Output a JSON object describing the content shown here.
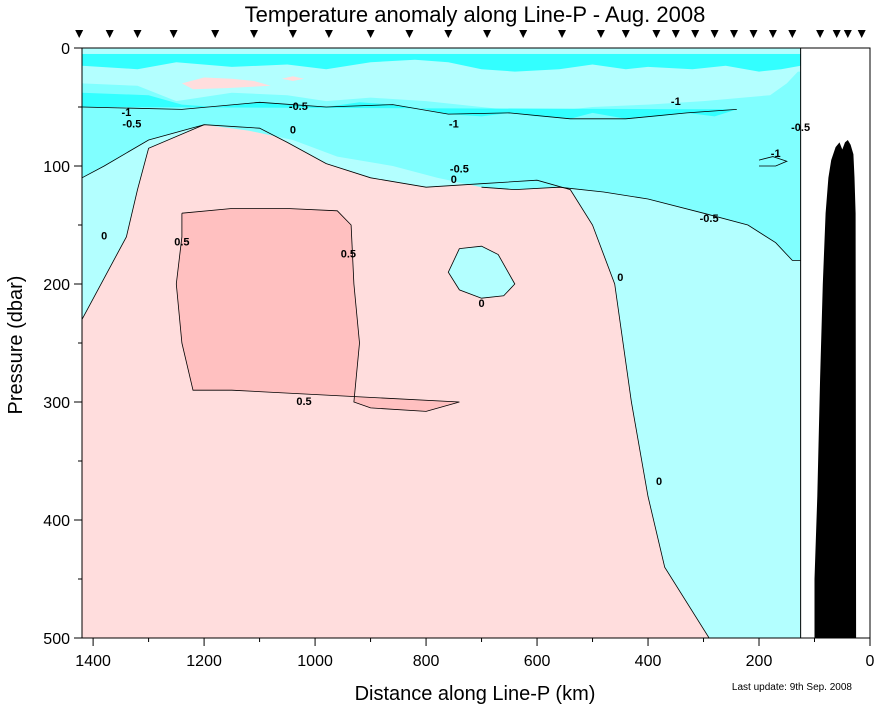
{
  "chart_data": {
    "type": "heatmap",
    "title": "Temperature anomaly along Line-P - Aug. 2008",
    "xlabel": "Distance along Line-P (km)",
    "ylabel": "Pressure (dbar)",
    "xlim": [
      1420,
      0
    ],
    "ylim": [
      0,
      500
    ],
    "x_ticks": [
      1400,
      1200,
      1000,
      800,
      600,
      400,
      200,
      0
    ],
    "x_minor_step": 100,
    "y_ticks": [
      0,
      100,
      200,
      300,
      400,
      500
    ],
    "y_minor_step": 50,
    "x_tick_labels": [
      "1400",
      "1200",
      "1000",
      "800",
      "600",
      "400",
      "200",
      "0"
    ],
    "y_tick_labels": [
      "0",
      "100",
      "200",
      "300",
      "400",
      "500"
    ],
    "data_extent_km": 125,
    "station_positions_km": [
      1425,
      1370,
      1320,
      1255,
      1180,
      1110,
      1040,
      975,
      900,
      830,
      760,
      690,
      625,
      555,
      485,
      440,
      385,
      350,
      315,
      280,
      245,
      210,
      175,
      140,
      90,
      60,
      40,
      15
    ],
    "contour_levels": [
      -1,
      -0.5,
      0,
      0.5
    ],
    "colors": {
      "below_-1": "#33ffff",
      "-1_to_-0.5": "#80ffff",
      "-0.5_to_0": "#b3ffff",
      "0_to_0.5": "#ffdddd",
      "above_0.5": "#ffc0c0",
      "bathymetry": "#000000"
    },
    "regions": [
      {
        "level": "0_to_0.5",
        "points": [
          [
            1420,
            230
          ],
          [
            1340,
            160
          ],
          [
            1320,
            120
          ],
          [
            1300,
            85
          ],
          [
            1200,
            65
          ],
          [
            1100,
            68
          ],
          [
            1050,
            80
          ],
          [
            980,
            98
          ],
          [
            900,
            110
          ],
          [
            800,
            118
          ],
          [
            700,
            115
          ],
          [
            600,
            112
          ],
          [
            540,
            120
          ],
          [
            500,
            150
          ],
          [
            460,
            200
          ],
          [
            430,
            300
          ],
          [
            400,
            380
          ],
          [
            370,
            440
          ],
          [
            290,
            500
          ],
          [
            1420,
            500
          ]
        ]
      },
      {
        "level": "-0.5_to_0",
        "points": [
          [
            740,
            170
          ],
          [
            700,
            168
          ],
          [
            670,
            175
          ],
          [
            640,
            200
          ],
          [
            660,
            210
          ],
          [
            700,
            212
          ],
          [
            740,
            205
          ],
          [
            760,
            190
          ]
        ]
      },
      {
        "level": "above_0.5",
        "points": [
          [
            1240,
            140
          ],
          [
            1150,
            136
          ],
          [
            1050,
            136
          ],
          [
            960,
            138
          ],
          [
            935,
            150
          ],
          [
            930,
            200
          ],
          [
            920,
            250
          ],
          [
            930,
            300
          ],
          [
            900,
            305
          ],
          [
            800,
            308
          ],
          [
            740,
            300
          ],
          [
            1150,
            290
          ],
          [
            1220,
            290
          ],
          [
            1240,
            250
          ],
          [
            1250,
            200
          ],
          [
            1240,
            160
          ]
        ]
      },
      {
        "level": "-1_to_-0.5",
        "points": [
          [
            1420,
            30
          ],
          [
            1320,
            32
          ],
          [
            1250,
            45
          ],
          [
            1150,
            38
          ],
          [
            1050,
            40
          ],
          [
            980,
            45
          ],
          [
            900,
            42
          ],
          [
            800,
            45
          ],
          [
            700,
            50
          ],
          [
            600,
            55
          ],
          [
            500,
            50
          ],
          [
            400,
            48
          ],
          [
            300,
            45
          ],
          [
            180,
            40
          ],
          [
            150,
            30
          ],
          [
            130,
            20
          ],
          [
            125,
            20
          ],
          [
            125,
            180
          ],
          [
            140,
            180
          ],
          [
            170,
            165
          ],
          [
            220,
            150
          ],
          [
            300,
            140
          ],
          [
            400,
            128
          ],
          [
            480,
            122
          ],
          [
            560,
            118
          ],
          [
            640,
            120
          ],
          [
            700,
            118
          ],
          [
            780,
            110
          ],
          [
            860,
            100
          ],
          [
            960,
            92
          ],
          [
            1040,
            78
          ],
          [
            1120,
            70
          ],
          [
            1200,
            65
          ],
          [
            1300,
            78
          ],
          [
            1380,
            100
          ],
          [
            1420,
            110
          ]
        ]
      },
      {
        "level": "below_-1",
        "points": [
          [
            1420,
            15
          ],
          [
            1320,
            18
          ],
          [
            1250,
            12
          ],
          [
            1150,
            16
          ],
          [
            1050,
            14
          ],
          [
            980,
            18
          ],
          [
            900,
            12
          ],
          [
            820,
            10
          ],
          [
            760,
            12
          ],
          [
            700,
            18
          ],
          [
            640,
            20
          ],
          [
            560,
            18
          ],
          [
            500,
            14
          ],
          [
            440,
            18
          ],
          [
            400,
            16
          ],
          [
            320,
            18
          ],
          [
            260,
            15
          ],
          [
            200,
            20
          ],
          [
            160,
            18
          ],
          [
            125,
            15
          ],
          [
            125,
            5
          ],
          [
            1420,
            5
          ]
        ]
      },
      {
        "level": "below_-1",
        "points": [
          [
            1420,
            38
          ],
          [
            1300,
            40
          ],
          [
            1240,
            48
          ],
          [
            1180,
            50
          ],
          [
            1100,
            46
          ],
          [
            1040,
            48
          ],
          [
            980,
            50
          ],
          [
            920,
            46
          ],
          [
            860,
            48
          ],
          [
            800,
            52
          ],
          [
            760,
            56
          ],
          [
            700,
            58
          ],
          [
            650,
            55
          ],
          [
            600,
            58
          ],
          [
            540,
            60
          ],
          [
            500,
            55
          ],
          [
            440,
            60
          ],
          [
            380,
            58
          ],
          [
            330,
            55
          ],
          [
            280,
            58
          ],
          [
            240,
            52
          ],
          [
            1420,
            50
          ]
        ]
      },
      {
        "level": "-0.5_to_0",
        "points": [
          [
            1420,
            5
          ],
          [
            125,
            5
          ],
          [
            125,
            0
          ],
          [
            1420,
            0
          ]
        ]
      },
      {
        "level": "0_to_0.5",
        "points": [
          [
            1240,
            30
          ],
          [
            1200,
            25
          ],
          [
            1150,
            26
          ],
          [
            1110,
            28
          ],
          [
            1080,
            32
          ],
          [
            1160,
            34
          ],
          [
            1220,
            35
          ]
        ]
      },
      {
        "level": "0_to_0.5",
        "points": [
          [
            1060,
            26
          ],
          [
            1040,
            24
          ],
          [
            1020,
            26
          ],
          [
            1040,
            28
          ]
        ]
      }
    ],
    "contours": [
      {
        "level": 0,
        "points": [
          [
            1420,
            230
          ],
          [
            1340,
            160
          ],
          [
            1320,
            120
          ],
          [
            1300,
            85
          ],
          [
            1200,
            65
          ],
          [
            1100,
            68
          ],
          [
            1050,
            80
          ],
          [
            980,
            98
          ],
          [
            900,
            110
          ],
          [
            800,
            118
          ],
          [
            700,
            115
          ],
          [
            600,
            112
          ],
          [
            540,
            120
          ],
          [
            500,
            150
          ],
          [
            460,
            200
          ],
          [
            430,
            300
          ],
          [
            400,
            380
          ],
          [
            370,
            440
          ],
          [
            290,
            500
          ]
        ]
      },
      {
        "level": 0,
        "points": [
          [
            740,
            170
          ],
          [
            700,
            168
          ],
          [
            670,
            175
          ],
          [
            640,
            200
          ],
          [
            660,
            210
          ],
          [
            700,
            212
          ],
          [
            740,
            205
          ],
          [
            760,
            190
          ],
          [
            740,
            170
          ]
        ]
      },
      {
        "level": 0.5,
        "points": [
          [
            1240,
            140
          ],
          [
            1150,
            136
          ],
          [
            1050,
            136
          ],
          [
            960,
            138
          ],
          [
            935,
            150
          ],
          [
            930,
            200
          ],
          [
            920,
            250
          ],
          [
            930,
            300
          ],
          [
            900,
            305
          ],
          [
            800,
            308
          ],
          [
            740,
            300
          ],
          [
            1150,
            290
          ],
          [
            1220,
            290
          ],
          [
            1240,
            250
          ],
          [
            1250,
            200
          ],
          [
            1240,
            160
          ],
          [
            1240,
            140
          ]
        ]
      },
      {
        "level": -0.5,
        "points": [
          [
            1420,
            110
          ],
          [
            1380,
            100
          ],
          [
            1300,
            78
          ],
          [
            1200,
            65
          ]
        ]
      },
      {
        "level": -0.5,
        "points": [
          [
            700,
            118
          ],
          [
            640,
            120
          ],
          [
            560,
            118
          ],
          [
            480,
            122
          ],
          [
            400,
            128
          ],
          [
            300,
            140
          ],
          [
            220,
            150
          ],
          [
            170,
            165
          ],
          [
            140,
            180
          ],
          [
            125,
            180
          ]
        ]
      },
      {
        "level": -1,
        "points": [
          [
            1420,
            50
          ],
          [
            1240,
            52
          ],
          [
            1100,
            46
          ],
          [
            980,
            50
          ],
          [
            860,
            48
          ],
          [
            760,
            56
          ],
          [
            650,
            55
          ],
          [
            540,
            60
          ],
          [
            440,
            60
          ],
          [
            330,
            55
          ],
          [
            240,
            52
          ]
        ]
      },
      {
        "level": -1,
        "points": [
          [
            200,
            95
          ],
          [
            175,
            92
          ],
          [
            150,
            96
          ],
          [
            170,
            100
          ],
          [
            200,
            100
          ]
        ]
      }
    ],
    "contour_labels": [
      {
        "text": "-1",
        "x": 1340,
        "y": 55
      },
      {
        "text": "-0.5",
        "x": 1330,
        "y": 65
      },
      {
        "text": "-0.5",
        "x": 1030,
        "y": 50
      },
      {
        "text": "0",
        "x": 1040,
        "y": 70
      },
      {
        "text": "-1",
        "x": 750,
        "y": 65
      },
      {
        "text": "-1",
        "x": 350,
        "y": 46
      },
      {
        "text": "-0.5",
        "x": 740,
        "y": 103
      },
      {
        "text": "0",
        "x": 750,
        "y": 112
      },
      {
        "text": "-0.5",
        "x": 290,
        "y": 145
      },
      {
        "text": "-0.5",
        "x": 125,
        "y": 68
      },
      {
        "text": "-1",
        "x": 170,
        "y": 90
      },
      {
        "text": "0",
        "x": 1380,
        "y": 160
      },
      {
        "text": "0.5",
        "x": 1240,
        "y": 165
      },
      {
        "text": "0.5",
        "x": 940,
        "y": 175
      },
      {
        "text": "0",
        "x": 700,
        "y": 217
      },
      {
        "text": "0",
        "x": 450,
        "y": 195
      },
      {
        "text": "0.5",
        "x": 1020,
        "y": 300
      },
      {
        "text": "0",
        "x": 380,
        "y": 368
      }
    ],
    "bathymetry": [
      [
        100,
        500
      ],
      [
        100,
        450
      ],
      [
        95,
        380
      ],
      [
        90,
        280
      ],
      [
        85,
        200
      ],
      [
        80,
        140
      ],
      [
        75,
        110
      ],
      [
        70,
        95
      ],
      [
        62,
        84
      ],
      [
        55,
        80
      ],
      [
        50,
        86
      ],
      [
        45,
        80
      ],
      [
        40,
        78
      ],
      [
        35,
        82
      ],
      [
        30,
        90
      ],
      [
        28,
        110
      ],
      [
        26,
        140
      ],
      [
        25,
        500
      ]
    ],
    "note": "Last update: 9th Sep. 2008"
  }
}
